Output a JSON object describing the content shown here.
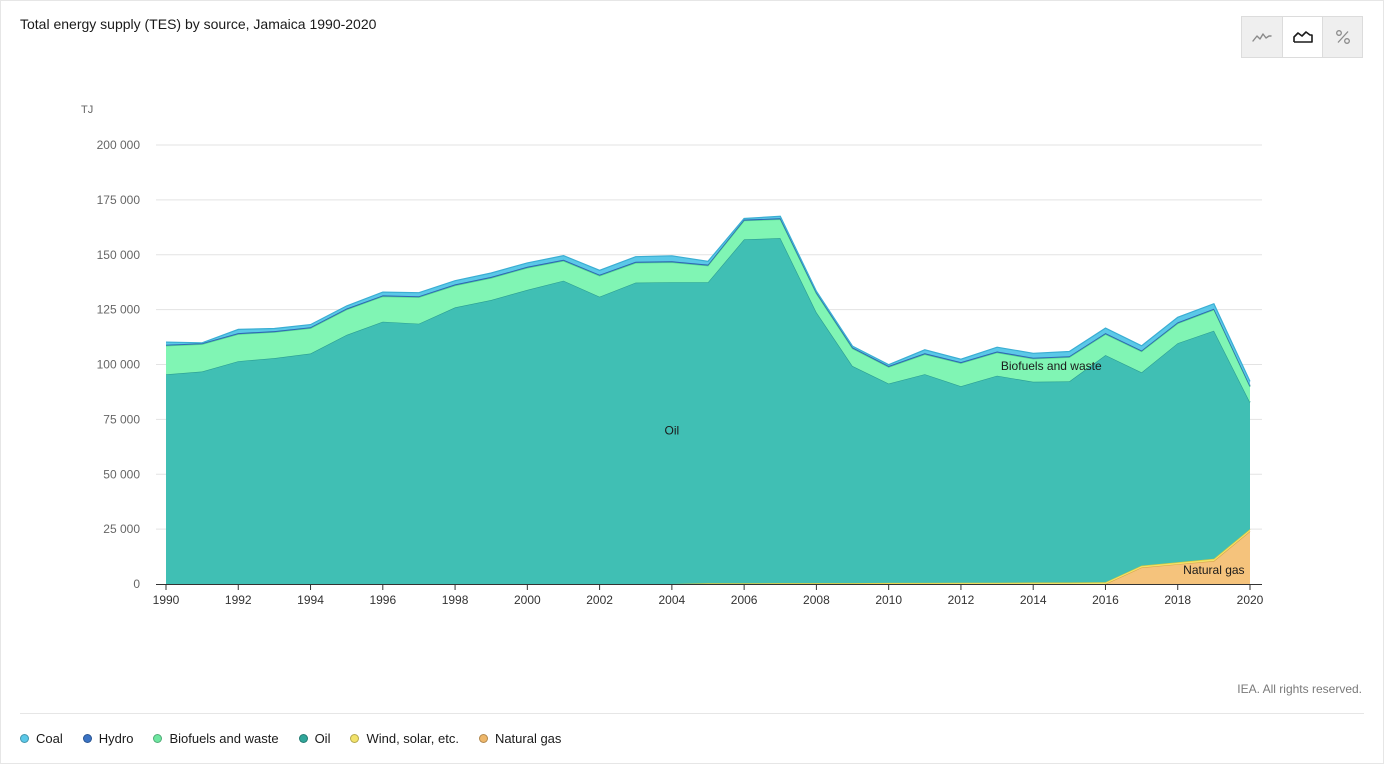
{
  "header": {
    "title": "Total energy supply (TES) by source, Jamaica 1990-2020"
  },
  "toolbar": {
    "buttons": [
      {
        "name": "line-chart-toggle",
        "icon": "line-chart-icon",
        "active": false
      },
      {
        "name": "area-chart-toggle",
        "icon": "area-chart-icon",
        "active": true
      },
      {
        "name": "percent-toggle",
        "icon": "percent-icon",
        "active": false
      }
    ]
  },
  "footer": {
    "credit": "IEA. All rights reserved."
  },
  "legend": [
    {
      "label": "Coal",
      "color": "#5bc8e8"
    },
    {
      "label": "Hydro",
      "color": "#3a73c4"
    },
    {
      "label": "Biofuels and waste",
      "color": "#6ee6a0"
    },
    {
      "label": "Oil",
      "color": "#30a69a"
    },
    {
      "label": "Wind, solar, etc.",
      "color": "#f2e26a"
    },
    {
      "label": "Natural gas",
      "color": "#eeb76a"
    }
  ],
  "chart_data": {
    "type": "area",
    "stacked": true,
    "ylabel": "TJ",
    "ylim": [
      0,
      200000
    ],
    "yticks": [
      0,
      25000,
      50000,
      75000,
      100000,
      125000,
      150000,
      175000,
      200000
    ],
    "ytick_labels": [
      "0",
      "25 000",
      "50 000",
      "75 000",
      "100 000",
      "125 000",
      "150 000",
      "175 000",
      "200 000"
    ],
    "xlim": [
      1990,
      2020
    ],
    "xticks": [
      1990,
      1992,
      1994,
      1996,
      1998,
      2000,
      2002,
      2004,
      2006,
      2008,
      2010,
      2012,
      2014,
      2016,
      2018,
      2020
    ],
    "x": [
      1990,
      1991,
      1992,
      1993,
      1994,
      1995,
      1996,
      1997,
      1998,
      1999,
      2000,
      2001,
      2002,
      2003,
      2004,
      2005,
      2006,
      2007,
      2008,
      2009,
      2010,
      2011,
      2012,
      2013,
      2014,
      2015,
      2016,
      2017,
      2018,
      2019,
      2020
    ],
    "grid": true,
    "legend_position": "bottom",
    "series": [
      {
        "name": "Natural gas",
        "color": "#f5c37c",
        "edge": "#d9a24e",
        "values": [
          0,
          0,
          0,
          0,
          0,
          0,
          0,
          0,
          0,
          0,
          0,
          0,
          0,
          0,
          0,
          0,
          0,
          0,
          0,
          0,
          0,
          0,
          0,
          0,
          0,
          0,
          0,
          7500,
          9000,
          10500,
          24000
        ]
      },
      {
        "name": "Wind, solar, etc.",
        "color": "#f2e26a",
        "edge": "#d9c63a",
        "values": [
          0,
          0,
          0,
          0,
          0,
          0,
          0,
          0,
          0,
          0,
          0,
          0,
          0,
          0,
          0,
          300,
          300,
          400,
          400,
          400,
          500,
          500,
          600,
          600,
          700,
          700,
          800,
          900,
          900,
          1000,
          1000
        ]
      },
      {
        "name": "Oil",
        "color": "#40bfb4",
        "edge": "#2a9d92",
        "values": [
          95500,
          96800,
          101500,
          102900,
          105000,
          113500,
          119500,
          118600,
          126000,
          129400,
          134000,
          138200,
          130900,
          137300,
          137500,
          137200,
          156700,
          157200,
          123400,
          98900,
          90800,
          95100,
          89500,
          94300,
          91400,
          91600,
          103500,
          88000,
          99800,
          103900,
          57800
        ]
      },
      {
        "name": "Biofuels and waste",
        "color": "#80f5b4",
        "edge": "#4fd88e",
        "values": [
          13000,
          12400,
          12300,
          11800,
          11500,
          11500,
          11500,
          12000,
          10000,
          10000,
          10000,
          9000,
          9500,
          9000,
          9000,
          7500,
          8500,
          8500,
          8500,
          8000,
          7500,
          9000,
          10500,
          10500,
          10500,
          11000,
          9500,
          9500,
          9000,
          9500,
          7000
        ]
      },
      {
        "name": "Hydro",
        "color": "#3a73c4",
        "edge": "#2c5fa8",
        "values": [
          500,
          500,
          500,
          500,
          500,
          500,
          500,
          500,
          500,
          500,
          500,
          500,
          500,
          500,
          500,
          500,
          500,
          500,
          500,
          500,
          500,
          500,
          500,
          500,
          500,
          500,
          500,
          500,
          500,
          500,
          500
        ]
      },
      {
        "name": "Coal",
        "color": "#5bc8e8",
        "edge": "#3aaed3",
        "values": [
          1200,
          200,
          1700,
          1200,
          1200,
          1200,
          1500,
          1600,
          1700,
          1800,
          1800,
          1900,
          2000,
          2300,
          2500,
          1500,
          500,
          900,
          600,
          600,
          600,
          1600,
          1300,
          2000,
          2000,
          2100,
          2300,
          2100,
          2300,
          2300,
          2000
        ]
      }
    ],
    "annotations": [
      {
        "text": "Oil",
        "x": 2004,
        "y": 68000
      },
      {
        "text": "Biofuels and waste",
        "x": 2014.5,
        "y": 97500
      },
      {
        "text": "Natural gas",
        "x": 2019,
        "y": 4500
      }
    ]
  }
}
